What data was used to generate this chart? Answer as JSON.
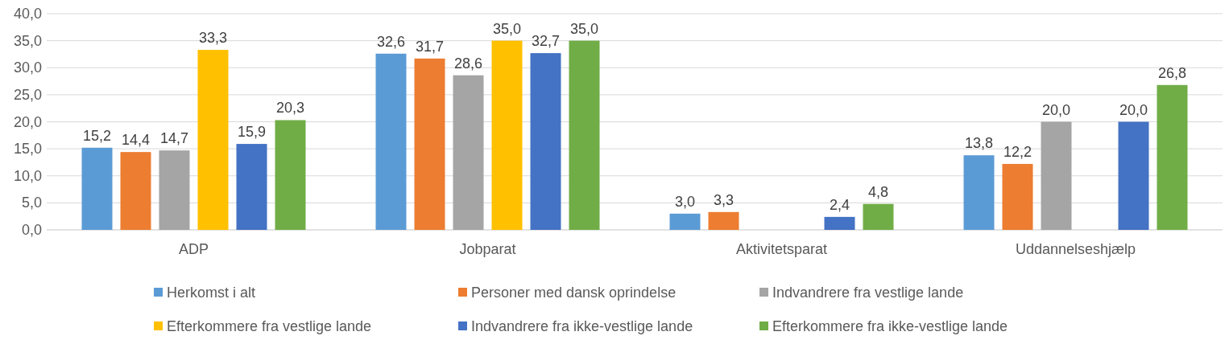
{
  "chart_data": {
    "type": "bar",
    "categories": [
      "ADP",
      "Jobparat",
      "Aktivitetsparat",
      "Uddannelseshjælp"
    ],
    "series": [
      {
        "name": "Herkomst i alt",
        "color": "#5b9bd5",
        "values": [
          15.2,
          32.6,
          3.0,
          13.8
        ],
        "value_labels": [
          "15,2",
          "32,6",
          "3,0",
          "13,8"
        ]
      },
      {
        "name": "Personer med dansk oprindelse",
        "color": "#ed7d31",
        "values": [
          14.4,
          31.7,
          3.3,
          12.2
        ],
        "value_labels": [
          "14,4",
          "31,7",
          "3,3",
          "12,2"
        ]
      },
      {
        "name": "Indvandrere fra vestlige lande",
        "color": "#a5a5a5",
        "values": [
          14.7,
          28.6,
          null,
          20.0
        ],
        "value_labels": [
          "14,7",
          "28,6",
          null,
          "20,0"
        ]
      },
      {
        "name": "Efterkommere fra vestlige lande",
        "color": "#ffc000",
        "values": [
          33.3,
          35.0,
          null,
          null
        ],
        "value_labels": [
          "33,3",
          "35,0",
          null,
          null
        ]
      },
      {
        "name": "Indvandrere fra ikke-vestlige lande",
        "color": "#4472c4",
        "values": [
          15.9,
          32.7,
          2.4,
          20.0
        ],
        "value_labels": [
          "15,9",
          "32,7",
          "2,4",
          "20,0"
        ]
      },
      {
        "name": "Efterkommere fra ikke-vestlige lande",
        "color": "#70ad47",
        "values": [
          20.3,
          35.0,
          4.8,
          26.8
        ],
        "value_labels": [
          "20,3",
          "35,0",
          "4,8",
          "26,8"
        ]
      }
    ],
    "ylim": [
      0,
      40
    ],
    "yticks": [
      {
        "value": 0,
        "label": "0,0"
      },
      {
        "value": 5,
        "label": "5,0"
      },
      {
        "value": 10,
        "label": "10,0"
      },
      {
        "value": 15,
        "label": "15,0"
      },
      {
        "value": 20,
        "label": "20,0"
      },
      {
        "value": 25,
        "label": "25,0"
      },
      {
        "value": 30,
        "label": "30,0"
      },
      {
        "value": 35,
        "label": "35,0"
      },
      {
        "value": 40,
        "label": "40,0"
      }
    ],
    "grid": "y",
    "legend": "bottom"
  }
}
